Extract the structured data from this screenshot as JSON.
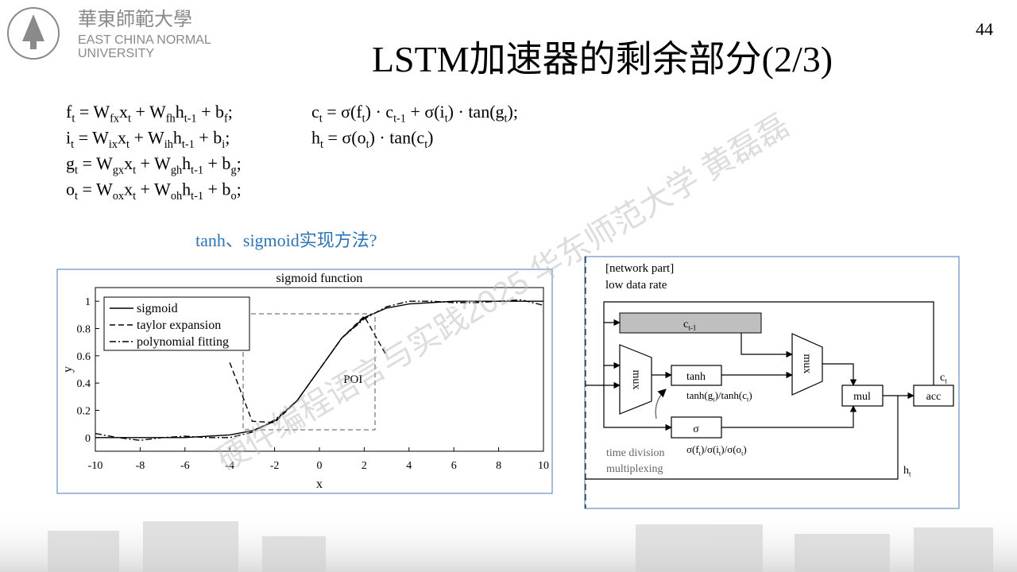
{
  "logo": {
    "chinese": "華東師範大學",
    "english_line1": "EAST CHINA NORMAL",
    "english_line2": "UNIVERSITY"
  },
  "page_number": "44",
  "title": "LSTM加速器的剩余部分(2/3)",
  "equations_left": [
    [
      "f",
      "t",
      " = W",
      "fx",
      "x",
      "t",
      " + W",
      "fh",
      "h",
      "t-1",
      " + b",
      "f",
      ";"
    ],
    [
      "i",
      "t",
      " = W",
      "ix",
      "x",
      "t",
      " + W",
      "ih",
      "h",
      "t-1",
      " + b",
      "i",
      ";"
    ],
    [
      "g",
      "t",
      " = W",
      "gx",
      "x",
      "t",
      " + W",
      "gh",
      "h",
      "t-1",
      " + b",
      "g",
      ";"
    ],
    [
      "o",
      "t",
      " = W",
      "ox",
      "x",
      "t",
      " + W",
      "oh",
      "h",
      "t-1",
      " + b",
      "o",
      ";"
    ]
  ],
  "equations_right": [
    [
      "c",
      "t",
      " = σ(f",
      "t",
      ") · c",
      "t-1",
      " + σ(i",
      "t",
      ") · tan(g",
      "t",
      ");"
    ],
    [
      "h",
      "t",
      " = σ(o",
      "t",
      ") · tan(c",
      "t",
      ")"
    ]
  ],
  "question": "tanh、sigmoid实现方法?",
  "watermark": "硬件编程语言与实践2025 华东师范大学 黄磊磊",
  "chart_data": {
    "type": "line",
    "title": "sigmoid function",
    "x_label": "x",
    "y_label": "y",
    "annotation": "POI",
    "x": [
      -10,
      -9,
      -8,
      -7,
      -6,
      -5,
      -4,
      -3,
      -2,
      -1,
      0,
      1,
      2,
      3,
      4,
      5,
      6,
      7,
      8,
      9,
      10
    ],
    "xlim": [
      -10,
      10
    ],
    "xticks": [
      -10,
      -8,
      -6,
      -4,
      -2,
      0,
      2,
      4,
      6,
      8,
      10
    ],
    "ylim": [
      -0.1,
      1.1
    ],
    "yticks": [
      0,
      0.2,
      0.4,
      0.6,
      0.8,
      1
    ],
    "series": [
      {
        "name": "sigmoid",
        "color": "#000000",
        "style": "solid",
        "values": [
          0,
          0,
          0,
          0,
          0,
          0.01,
          0.02,
          0.05,
          0.12,
          0.27,
          0.5,
          0.73,
          0.88,
          0.95,
          0.98,
          0.99,
          1,
          1,
          1,
          1,
          1
        ]
      },
      {
        "name": "taylor expansion",
        "color": "#000000",
        "style": "dashed",
        "values": [
          null,
          null,
          null,
          null,
          null,
          null,
          0.55,
          0.12,
          0.11,
          0.27,
          0.5,
          0.73,
          0.89,
          0.6,
          null,
          null,
          null,
          null,
          null,
          null,
          null
        ]
      },
      {
        "name": "polynomial fitting",
        "color": "#000000",
        "style": "dashdot",
        "values": [
          0.03,
          0,
          -0.02,
          0,
          0.01,
          0,
          0,
          0.04,
          0.13,
          0.27,
          0.5,
          0.73,
          0.87,
          0.96,
          1,
          1,
          0.99,
          0.99,
          1,
          1.01,
          0.97
        ]
      }
    ]
  },
  "diagram": {
    "header_line1": "[network part]",
    "header_line2": "low data rate",
    "register": [
      "c",
      "t-1"
    ],
    "mux_left": "mux",
    "mux_right": "mux",
    "tanh_block": "tanh",
    "tanh_caption": [
      "tanh(g",
      "t",
      ")/tanh(c",
      "t",
      ")"
    ],
    "sigma_block": "σ",
    "sigma_caption": [
      "σ(f",
      "t",
      ")/σ(i",
      "t",
      ")/σ(o",
      "t",
      ")"
    ],
    "tdm_line1": "time division",
    "tdm_line2": "multiplexing",
    "mul_block": "mul",
    "acc_block": "acc",
    "c_out": [
      "c",
      "t"
    ],
    "h_out": [
      "h",
      "t"
    ]
  }
}
